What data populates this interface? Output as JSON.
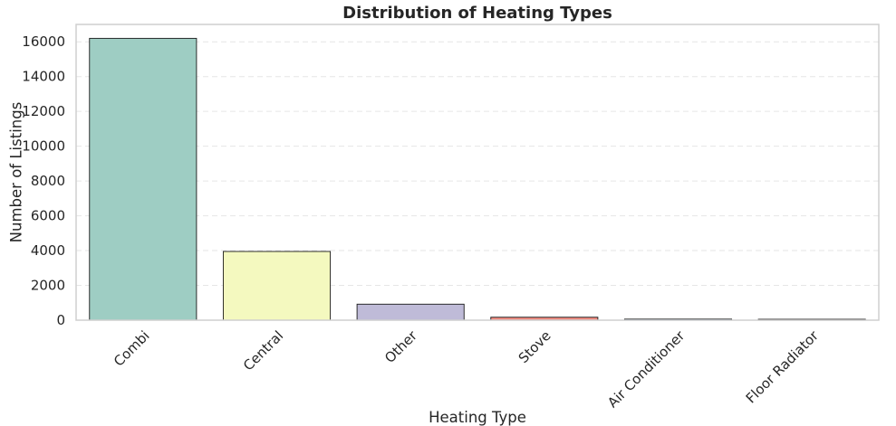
{
  "chart_data": {
    "type": "bar",
    "title": "Distribution of Heating Types",
    "xlabel": "Heating Type",
    "ylabel": "Number of Listings",
    "categories": [
      "Combi",
      "Central",
      "Other",
      "Stove",
      "Air Conditioner",
      "Floor Radiator"
    ],
    "values": [
      16200,
      3950,
      920,
      170,
      60,
      50
    ],
    "colors": [
      "#9ecdc3",
      "#f4f9bf",
      "#bfbbd8",
      "#ef8a80",
      "#86aecd",
      "#f2b57d"
    ],
    "ylim": [
      0,
      17000
    ],
    "yticks": [
      0,
      2000,
      4000,
      6000,
      8000,
      10000,
      12000,
      14000,
      16000
    ],
    "ytick_labels": [
      "0",
      "2000",
      "4000",
      "6000",
      "8000",
      "10000",
      "12000",
      "14000",
      "16000"
    ],
    "grid": "y-dashed",
    "legend": "none"
  }
}
